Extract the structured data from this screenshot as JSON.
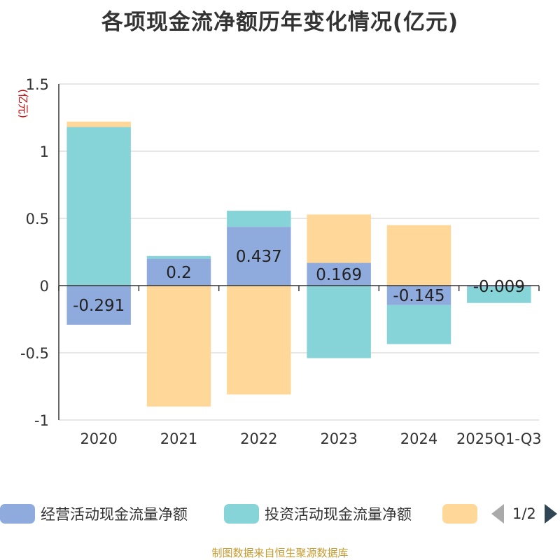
{
  "chart_data": {
    "type": "bar",
    "stacked": true,
    "title": "各项现金流净额历年变化情况(亿元)",
    "ylabel": "(亿元)",
    "ylim": [
      -1,
      1.5
    ],
    "y_ticks": [
      1.5,
      1,
      0.5,
      0,
      -0.5,
      -1
    ],
    "y_tick_labels": [
      "1.5",
      "1",
      "0.5",
      "0",
      "-0.5",
      "-1"
    ],
    "categories": [
      "2020",
      "2021",
      "2022",
      "2023",
      "2024",
      "2025Q1-Q3"
    ],
    "series": [
      {
        "name": "经营活动现金流量净额",
        "color": "#8faadc",
        "values": [
          -0.291,
          0.2,
          0.437,
          0.169,
          -0.145,
          -0.009
        ],
        "data_labels": [
          "-0.291",
          "0.2",
          "0.437",
          "0.169",
          "-0.145",
          "-0.009"
        ]
      },
      {
        "name": "投资活动现金流量净额",
        "color": "#86d4d8",
        "values": [
          1.18,
          0.02,
          0.12,
          -0.54,
          -0.29,
          -0.12
        ]
      },
      {
        "name": "",
        "color": "#ffd899",
        "values": [
          0.04,
          -0.9,
          -0.81,
          0.36,
          0.45,
          0.0
        ]
      }
    ],
    "grid": true,
    "legend_position": "bottom"
  },
  "legend": {
    "items": [
      {
        "label": "经营活动现金流量净额",
        "color": "#8faadc"
      },
      {
        "label": "投资活动现金流量净额",
        "color": "#86d4d8"
      },
      {
        "label": "",
        "color": "#ffd899"
      }
    ],
    "page": "1/2",
    "prev_icon": "chevron-left-icon",
    "next_icon": "chevron-right-icon"
  },
  "footer": "制图数据来自恒生聚源数据库",
  "colors": {
    "title": "#333333",
    "axis_label": "#cc0000",
    "footer": "#c79a2e"
  }
}
